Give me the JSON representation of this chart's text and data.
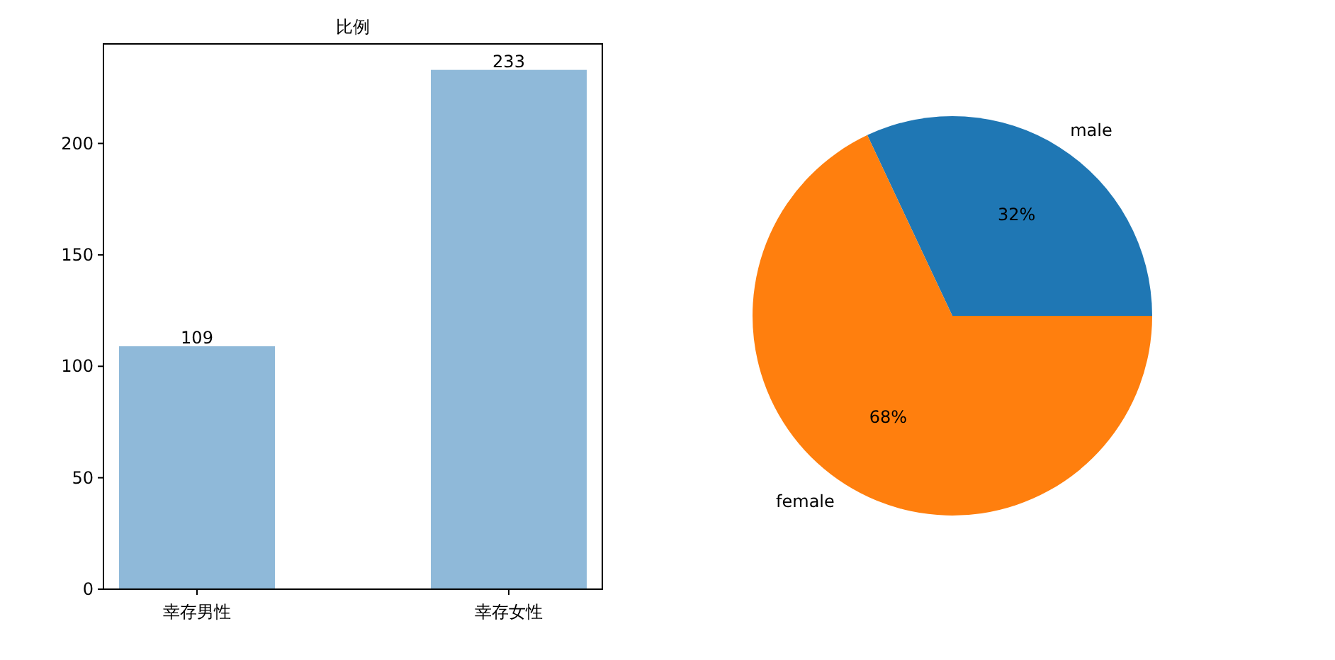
{
  "chart_data": [
    {
      "type": "bar",
      "title": "比例",
      "categories": [
        "幸存男性",
        "幸存女性"
      ],
      "values": [
        109,
        233
      ],
      "color": "#8fb9d9",
      "ylim": [
        0,
        244.65
      ],
      "yticks": [
        0,
        50,
        100,
        150,
        200
      ],
      "data_labels": true
    },
    {
      "type": "pie",
      "categories": [
        "male",
        "female"
      ],
      "values": [
        32,
        68
      ],
      "colors": [
        "#1f77b4",
        "#ff7f0e"
      ],
      "value_labels": [
        "32%",
        "68%"
      ]
    }
  ]
}
